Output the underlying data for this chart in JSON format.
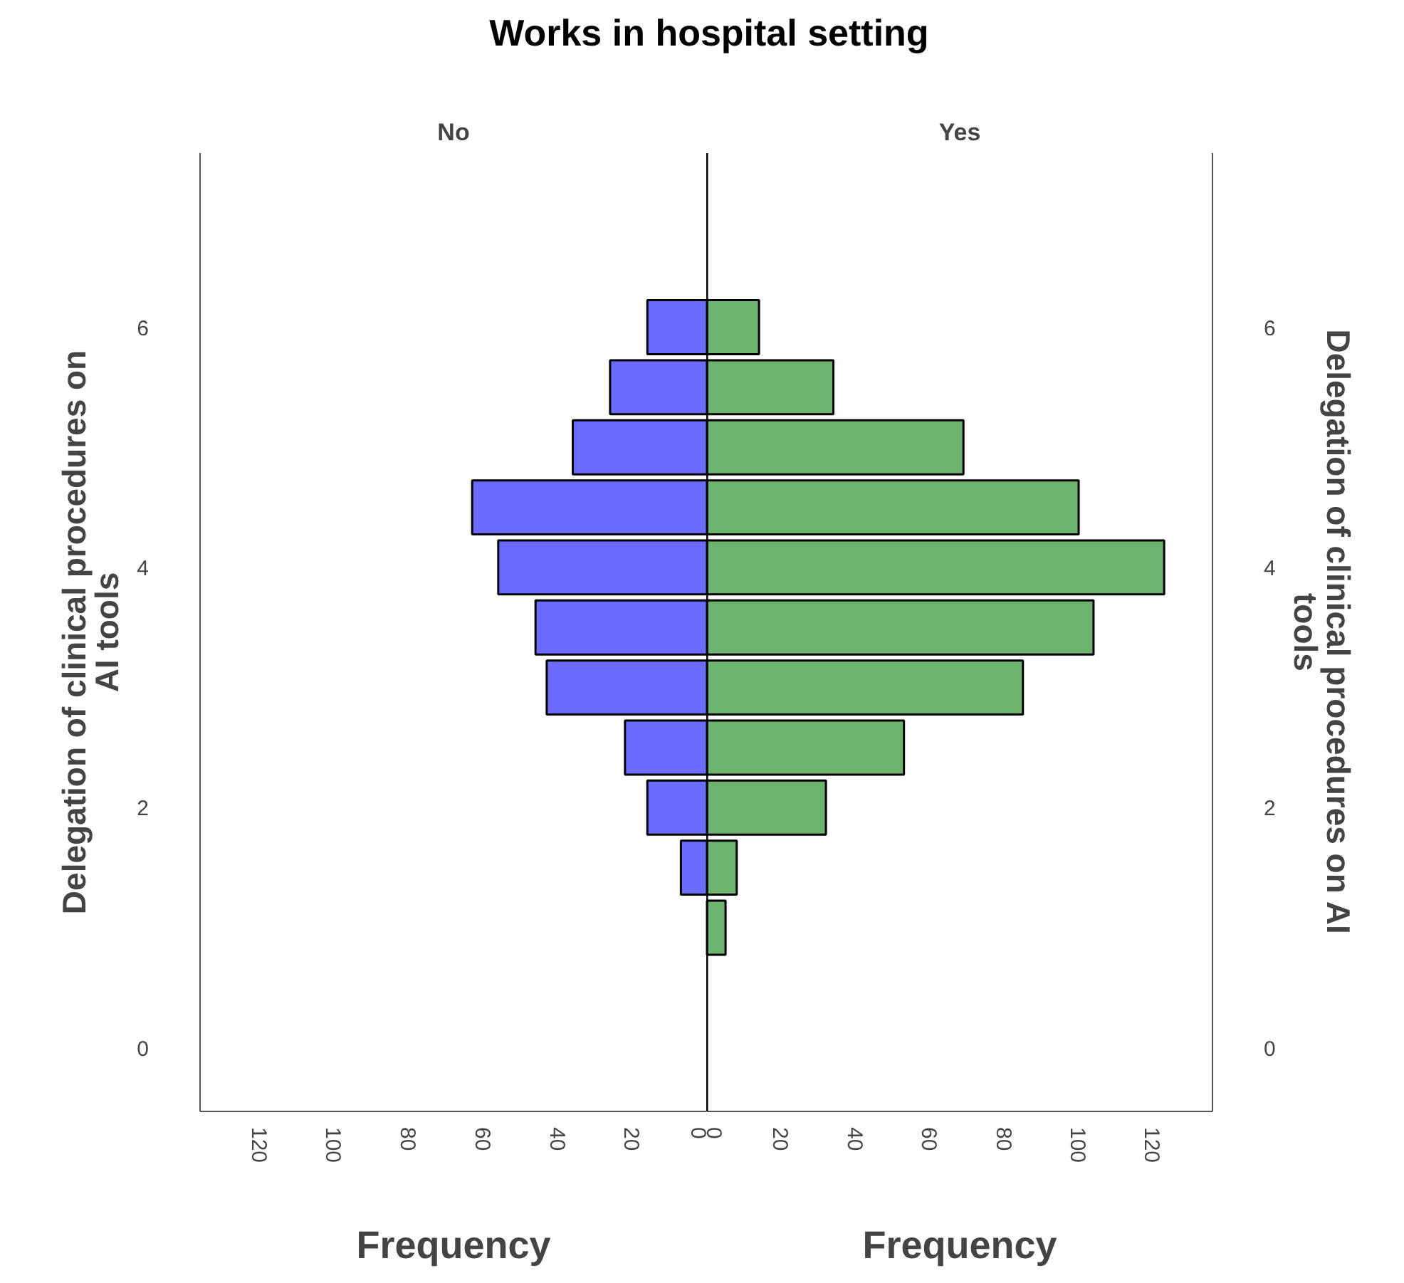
{
  "chart_data": [
    {
      "type": "histogram",
      "orientation": "horizontal",
      "title": "Works in hospital setting",
      "subtitle": "No",
      "xlabel": "Frequency",
      "ylabel": "Delegation of clinical procedures on AI tools",
      "bins": [
        0.75,
        1.25,
        1.75,
        2.25,
        2.75,
        3.25,
        3.75,
        4.25,
        4.75,
        5.25,
        5.75,
        6.25
      ],
      "values": [
        0,
        7,
        16,
        22,
        43,
        46,
        56,
        63,
        36,
        26,
        16
      ],
      "color": "#6b6bff",
      "xlim": [
        136,
        0
      ],
      "xticks": [
        0,
        20,
        40,
        60,
        80,
        100,
        120
      ],
      "ylim": [
        -0.53,
        7.45
      ],
      "yticks": [
        0,
        2,
        4,
        6
      ]
    },
    {
      "type": "histogram",
      "orientation": "horizontal",
      "subtitle": "Yes",
      "xlabel": "Frequency",
      "ylabel": "Delegation of clinical procedures on AI tools",
      "bins": [
        0.75,
        1.25,
        1.75,
        2.25,
        2.75,
        3.25,
        3.75,
        4.25,
        4.75,
        5.25,
        5.75,
        6.25
      ],
      "values": [
        5,
        8,
        32,
        53,
        85,
        104,
        123,
        100,
        69,
        34,
        14
      ],
      "color": "#6db36d",
      "xlim": [
        0,
        136
      ],
      "xticks": [
        0,
        20,
        40,
        60,
        80,
        100,
        120
      ],
      "ylim": [
        -0.53,
        7.45
      ],
      "yticks": [
        0,
        2,
        4,
        6
      ]
    }
  ]
}
